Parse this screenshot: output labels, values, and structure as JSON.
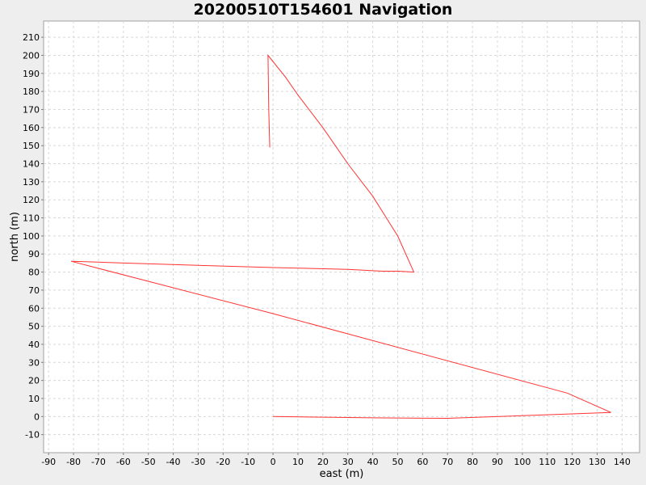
{
  "chart_data": {
    "type": "line",
    "title": "20200510T154601 Navigation",
    "xlabel": "east (m)",
    "ylabel": "north (m)",
    "xlim": [
      -92,
      147
    ],
    "ylim": [
      -20,
      219
    ],
    "x_ticks": [
      -90,
      -80,
      -70,
      -60,
      -50,
      -40,
      -30,
      -20,
      -10,
      0,
      10,
      20,
      30,
      40,
      50,
      60,
      70,
      80,
      90,
      100,
      110,
      120,
      130,
      140
    ],
    "y_ticks": [
      -10,
      0,
      10,
      20,
      30,
      40,
      50,
      60,
      70,
      80,
      90,
      100,
      110,
      120,
      130,
      140,
      150,
      160,
      170,
      180,
      190,
      200,
      210
    ],
    "grid": true,
    "series": [
      {
        "color": "#ff3333",
        "x": [
          -1.3,
          -1.7,
          -2,
          5,
          10,
          20,
          30,
          40,
          50,
          56.5,
          50,
          44,
          30,
          0,
          -30,
          -60,
          -75,
          -81,
          0,
          118,
          135.5,
          110,
          70,
          40,
          0
        ],
        "y": [
          149,
          170,
          200,
          188,
          178,
          160,
          140,
          122,
          100,
          80,
          80.5,
          80.5,
          81.5,
          82.5,
          83.7,
          85,
          85.7,
          86,
          57,
          13,
          2.3,
          1,
          -1,
          -0.7,
          0
        ]
      }
    ]
  }
}
